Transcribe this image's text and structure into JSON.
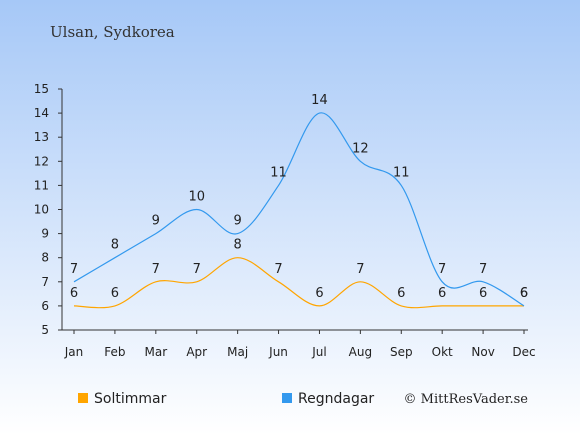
{
  "chart_data": {
    "type": "line",
    "title": "Ulsan, Sydkorea",
    "categories": [
      "Jan",
      "Feb",
      "Mar",
      "Apr",
      "Maj",
      "Jun",
      "Jul",
      "Aug",
      "Sep",
      "Okt",
      "Nov",
      "Dec"
    ],
    "series": [
      {
        "name": "Soltimmar",
        "color": "#ffa500",
        "values": [
          6,
          6,
          7,
          7,
          8,
          7,
          6,
          7,
          6,
          6,
          6,
          6
        ]
      },
      {
        "name": "Regndagar",
        "color": "#3399ee",
        "values": [
          7,
          8,
          9,
          10,
          9,
          11,
          14,
          12,
          11,
          7,
          7,
          6
        ]
      }
    ],
    "ylim": [
      5,
      15
    ],
    "yticks": [
      5,
      6,
      7,
      8,
      9,
      10,
      11,
      12,
      13,
      14,
      15
    ],
    "legend_position": "bottom",
    "background": {
      "top": "#a6c8f7",
      "bottom": "#ffffff"
    },
    "copyright": "© MittResVader.se"
  }
}
